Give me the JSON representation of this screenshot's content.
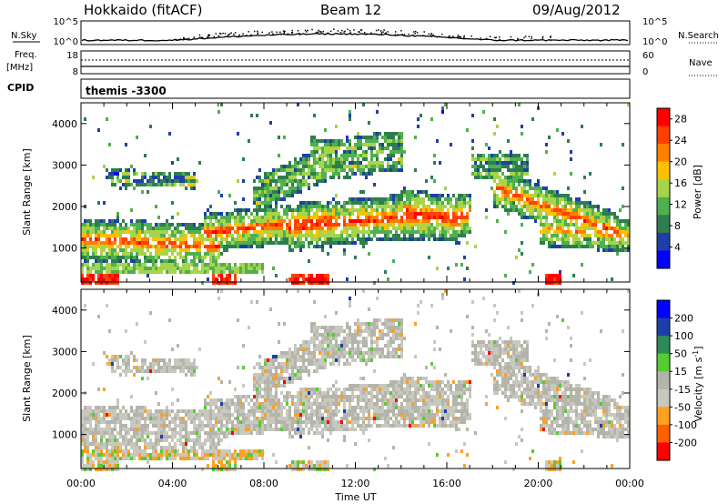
{
  "header": {
    "station": "Hokkaido (fitACF)",
    "beam": "Beam 12",
    "date": "09/Aug/2012"
  },
  "sky_panel": {
    "left_label": "N.Sky",
    "left_ticks": [
      "10^5",
      "10^0"
    ],
    "right_label": "N.Search",
    "right_ticks": [
      "10^5",
      "10^0"
    ]
  },
  "freq_panel": {
    "left_label_line1": "Freq.",
    "left_label_line2": "[MHz]",
    "left_ticks": [
      "18",
      "8"
    ],
    "right_label": "Nave",
    "right_ticks": [
      "60",
      "0"
    ]
  },
  "cpid_panel": {
    "label": "CPID",
    "value": "themis -3300"
  },
  "colors": {
    "power": [
      "#0000ff",
      "#1e3fa8",
      "#2e7d4f",
      "#4fb04f",
      "#a6d44a",
      "#ffc000",
      "#ff8000",
      "#ff4000",
      "#ff0000"
    ],
    "velocity": [
      "#ff0000",
      "#ff6000",
      "#ffa020",
      "#c8c8be",
      "#b4b4aa",
      "#55cc33",
      "#2e8b57",
      "#1e3fa8",
      "#0000ff"
    ]
  },
  "chart_data": [
    {
      "type": "heatmap",
      "title": "Power",
      "xlabel": "Time UT",
      "ylabel": "Slant Range [km]",
      "xlim": [
        "00:00",
        "24:00"
      ],
      "ylim": [
        180,
        4500
      ],
      "x_ticks": [
        "00:00",
        "04:00",
        "08:00",
        "12:00",
        "16:00",
        "20:00",
        "00:00"
      ],
      "y_ticks": [
        1000,
        2000,
        3000,
        4000
      ],
      "colorbar_label": "Power [dB]",
      "colorbar_ticks": [
        4,
        8,
        12,
        16,
        20,
        24,
        28
      ],
      "colorbar_range": [
        0,
        30
      ]
    },
    {
      "type": "heatmap",
      "title": "Velocity",
      "xlabel": "Time UT",
      "ylabel": "Slant Range [km]",
      "xlim": [
        "00:00",
        "24:00"
      ],
      "ylim": [
        180,
        4500
      ],
      "x_ticks": [
        "00:00",
        "04:00",
        "08:00",
        "12:00",
        "16:00",
        "20:00",
        "00:00"
      ],
      "y_ticks": [
        1000,
        2000,
        3000,
        4000
      ],
      "colorbar_label": "Velocity [m s",
      "colorbar_label_sup": "-1",
      "colorbar_label_end": "]",
      "colorbar_ticks": [
        -200,
        -100,
        -50,
        -15,
        15,
        50,
        100,
        200
      ]
    }
  ]
}
